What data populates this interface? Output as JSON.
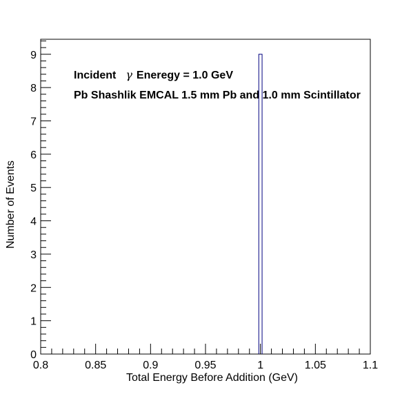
{
  "chart_data": {
    "type": "bar",
    "histogram": true,
    "xlabel": "Total Energy Before Addition (GeV)",
    "ylabel": "Number of Events",
    "xlim": [
      0.8,
      1.1
    ],
    "ylim": [
      0,
      9.45
    ],
    "x_ticks": [
      "0.8",
      "0.85",
      "0.9",
      "0.95",
      "1",
      "1.05",
      "1.1"
    ],
    "y_ticks": [
      "0",
      "1",
      "2",
      "3",
      "4",
      "5",
      "6",
      "7",
      "8",
      "9"
    ],
    "bins": [
      {
        "x_low": 0.9985,
        "x_high": 1.0015,
        "value": 9
      }
    ],
    "line_color": "#00007f",
    "grid": false,
    "legend": "none",
    "annotations": [
      {
        "prefix": "Incident",
        "symbol": "γ",
        "text": "Eneregy = 1.0 GeV"
      },
      {
        "text": "Pb Shashlik EMCAL 1.5 mm Pb and 1.0 mm Scintillator"
      }
    ]
  }
}
